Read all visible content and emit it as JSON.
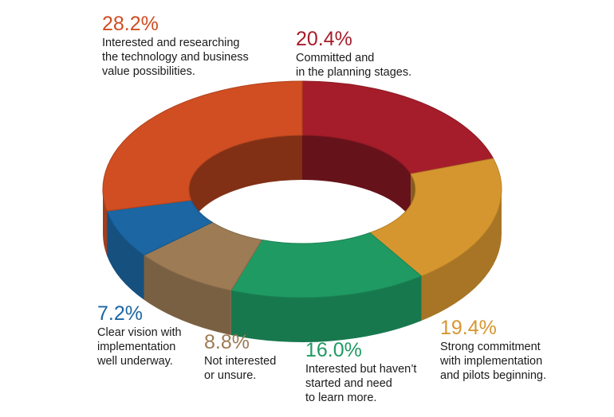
{
  "chart_data": {
    "type": "pie",
    "title": "",
    "slices": [
      {
        "value": 20.4,
        "label": "20.4%",
        "lines": [
          "Committed and",
          "in the planning stages."
        ],
        "color": "#a51d2a"
      },
      {
        "value": 19.4,
        "label": "19.4%",
        "lines": [
          "Strong commitment",
          "with implementation",
          "and pilots beginning."
        ],
        "color": "#d6962f"
      },
      {
        "value": 16.0,
        "label": "16.0%",
        "lines": [
          "Interested but haven’t",
          "started and need",
          "to learn more."
        ],
        "color": "#1f9a63"
      },
      {
        "value": 8.8,
        "label": "8.8%",
        "lines": [
          "Not interested",
          "or unsure."
        ],
        "color": "#9c7b55"
      },
      {
        "value": 7.2,
        "label": "7.2%",
        "lines": [
          "Clear vision with",
          "implementation",
          "well underway."
        ],
        "color": "#1b66a3"
      },
      {
        "value": 28.2,
        "label": "28.2%",
        "lines": [
          "Interested and researching",
          "the technology and business",
          "value possibilities."
        ],
        "color": "#d04e22"
      }
    ]
  }
}
